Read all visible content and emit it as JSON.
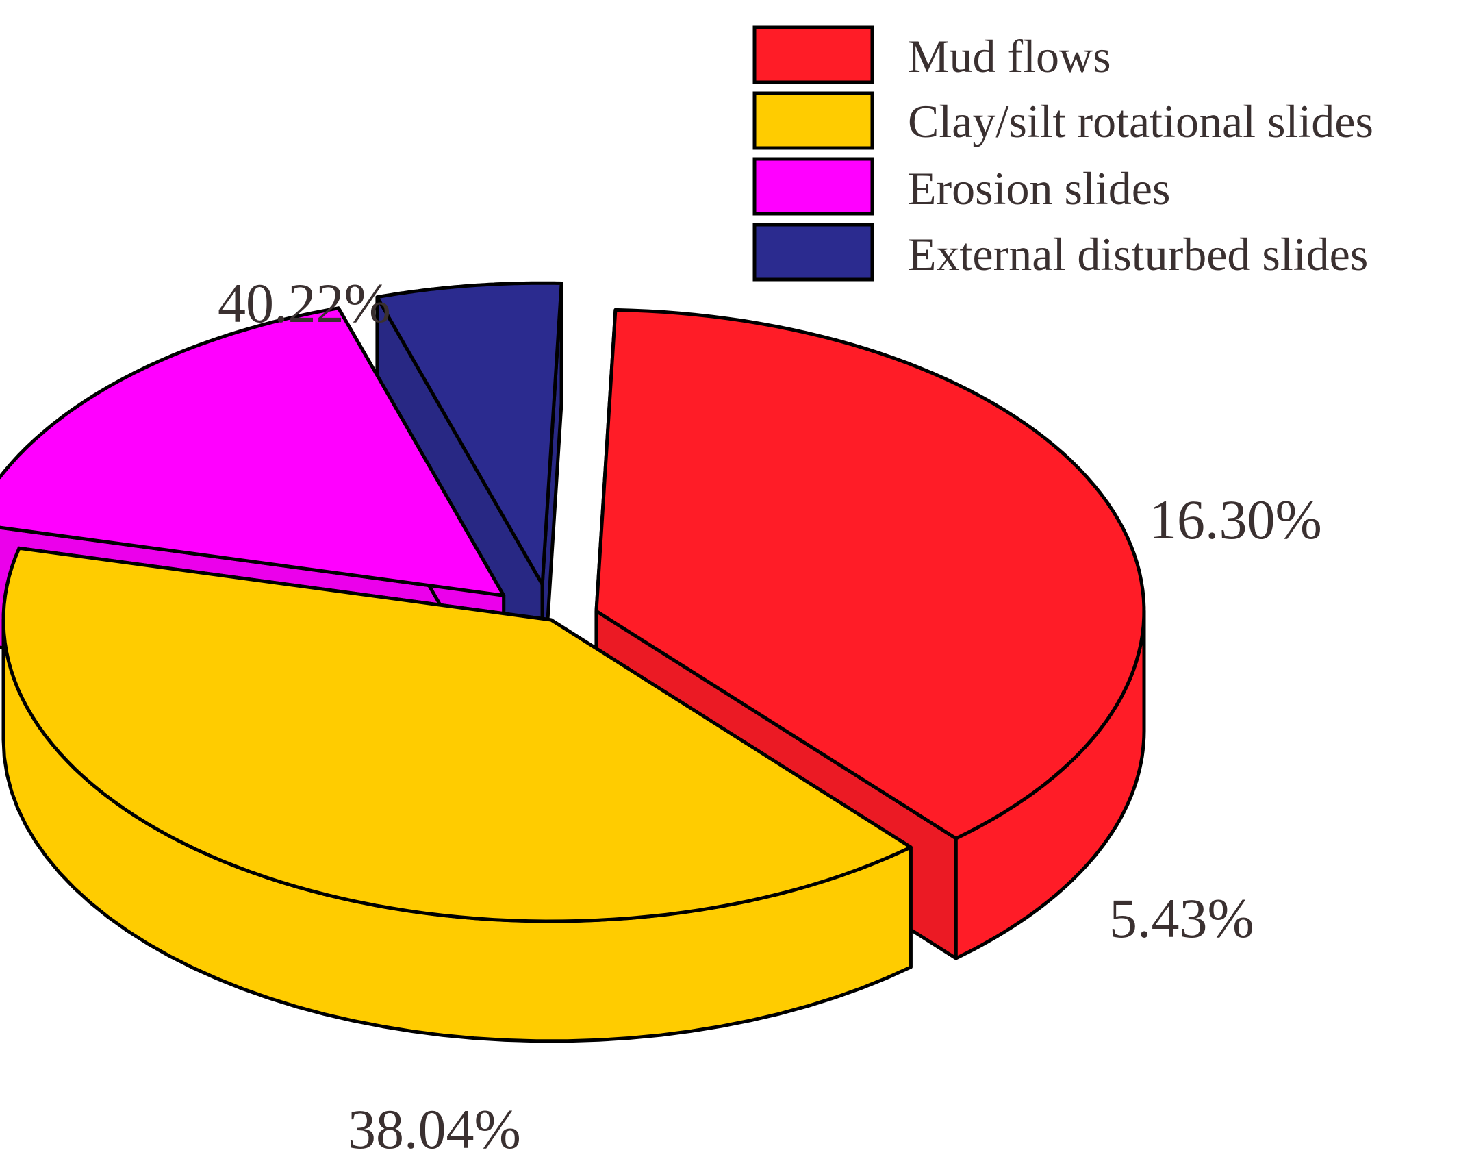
{
  "chart_data": {
    "type": "pie",
    "style": "3d-exploded",
    "legend_position": "top-right",
    "slices": [
      {
        "name": "Mud flows",
        "value": 38.04,
        "label": "38.04%",
        "color": "#FF1C27"
      },
      {
        "name": "Clay/silt rotational slides",
        "value": 40.22,
        "label": "40.22%",
        "color": "#FFCC00"
      },
      {
        "name": "Erosion slides",
        "value": 16.3,
        "label": "16.30%",
        "color": "#FF00FF"
      },
      {
        "name": "External disturbed slides",
        "value": 5.43,
        "label": "5.43%",
        "color": "#2B2B8F"
      }
    ]
  }
}
